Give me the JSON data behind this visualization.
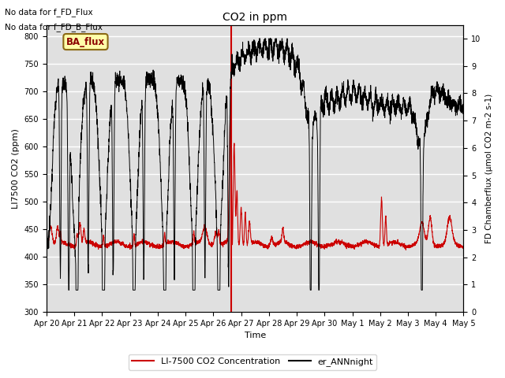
{
  "title": "CO2 in ppm",
  "xlabel": "Time",
  "ylabel_left": "LI7500 CO2 (ppm)",
  "ylabel_right": "FD Chamberflux (μmol CO2 m-2 s-1)",
  "annotation_lines": [
    "No data for f_FD_Flux",
    "No data for f_FD_B_Flux"
  ],
  "ba_flux_label": "BA_flux",
  "ylim_left": [
    300,
    820
  ],
  "ylim_right": [
    0.0,
    10.5
  ],
  "yticks_left": [
    300,
    350,
    400,
    450,
    500,
    550,
    600,
    650,
    700,
    750,
    800
  ],
  "yticks_right": [
    0.0,
    1.0,
    2.0,
    3.0,
    4.0,
    5.0,
    6.0,
    7.0,
    8.0,
    9.0,
    10.0
  ],
  "xtick_labels": [
    "Apr 20",
    "Apr 21",
    "Apr 22",
    "Apr 23",
    "Apr 24",
    "Apr 25",
    "Apr 26",
    "Apr 27",
    "Apr 28",
    "Apr 29",
    "Apr 30",
    "May 1",
    "May 2",
    "May 3",
    "May 4",
    "May 5"
  ],
  "vline_x": 6.65,
  "legend_entries": [
    "LI-7500 CO2 Concentration",
    "er_ANNnight"
  ],
  "legend_colors": [
    "#cc0000",
    "#000000"
  ],
  "bg_color": "#e0e0e0",
  "red_color": "#cc0000",
  "black_color": "#000000"
}
